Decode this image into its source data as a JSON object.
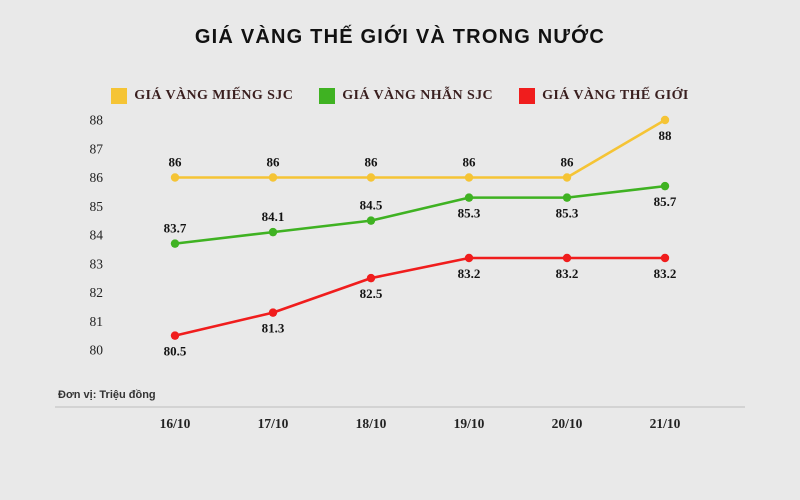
{
  "chart_data": {
    "type": "line",
    "title": "GIÁ VÀNG THẾ GIỚI VÀ TRONG NƯỚC",
    "unit_note": "Đơn vị: Triệu đồng",
    "categories": [
      "16/10",
      "17/10",
      "18/10",
      "19/10",
      "20/10",
      "21/10"
    ],
    "yticks": [
      80,
      81,
      82,
      83,
      84,
      85,
      86,
      87,
      88
    ],
    "ylim": [
      80,
      88
    ],
    "grid": false,
    "legend_position": "top",
    "series": [
      {
        "key": "mieng-sjc",
        "name": "GIÁ VÀNG MIẾNG SJC",
        "color": "#F5C435",
        "values": [
          86,
          86,
          86,
          86,
          86,
          88
        ],
        "label_side": [
          "above",
          "above",
          "above",
          "above",
          "above",
          "below"
        ]
      },
      {
        "key": "nhan-sjc",
        "name": "GIÁ VÀNG NHẪN SJC",
        "color": "#3FB222",
        "values": [
          83.7,
          84.1,
          84.5,
          85.3,
          85.3,
          85.7
        ],
        "label_side": [
          "above",
          "above",
          "above",
          "below",
          "below",
          "below"
        ]
      },
      {
        "key": "the-gioi",
        "name": "GIÁ VÀNG THẾ GIỚI",
        "color": "#F01D1D",
        "values": [
          80.5,
          81.3,
          82.5,
          83.2,
          83.2,
          83.2
        ],
        "label_side": [
          "below",
          "below",
          "below",
          "below",
          "below",
          "below"
        ]
      }
    ],
    "colors": {
      "background": "#E9E9E9",
      "text": "#141414",
      "legend_text": "#3A1F1F",
      "axis_line": "#BDBDBD"
    }
  }
}
